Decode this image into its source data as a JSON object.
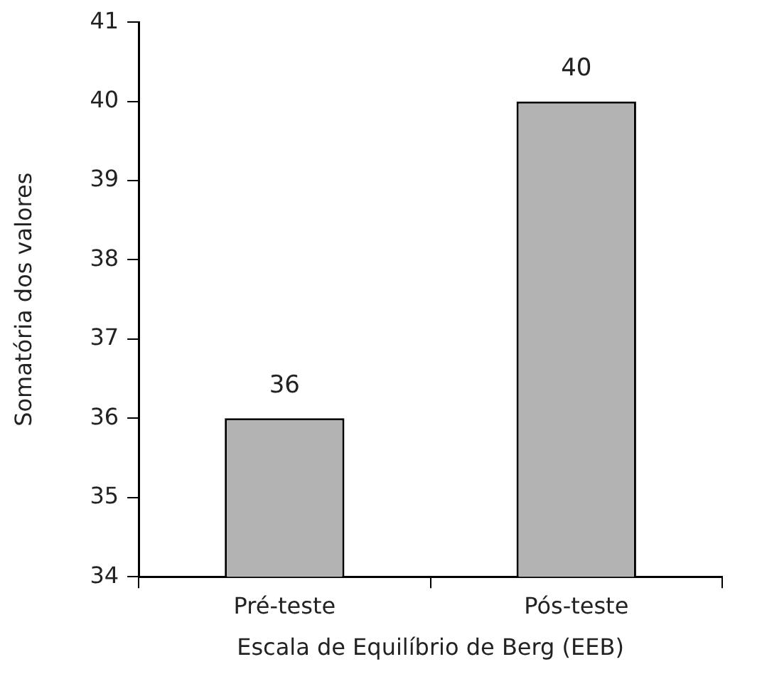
{
  "chart_data": {
    "type": "bar",
    "xlabel": "Escala de Equilíbrio de Berg (EEB)",
    "ylabel": "Somatória dos valores",
    "categories": [
      "Pré-teste",
      "Pós-teste"
    ],
    "values": [
      36,
      40
    ],
    "color": "#b3b3b3",
    "ylim": [
      34,
      41
    ],
    "yticks": [
      34,
      35,
      36,
      37,
      38,
      39,
      40,
      41
    ],
    "data_labels": true
  }
}
